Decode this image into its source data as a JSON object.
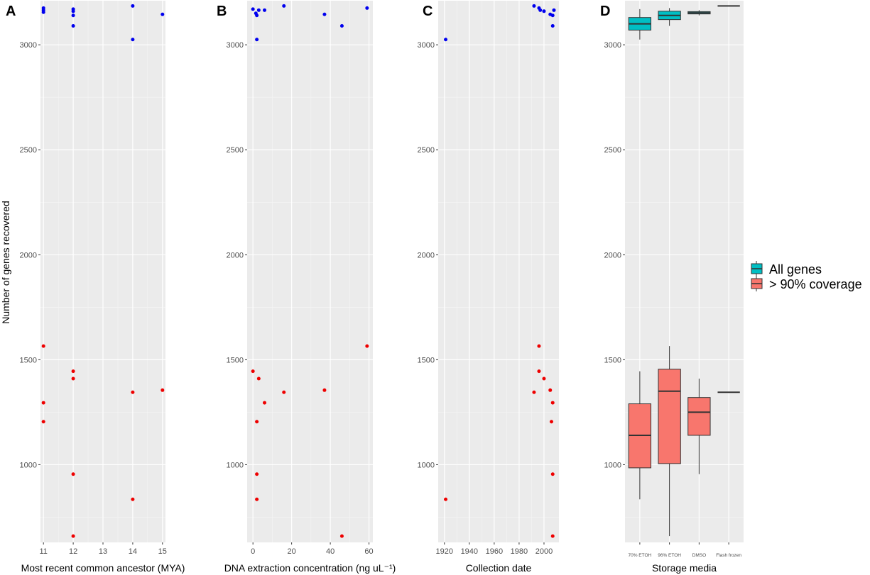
{
  "figure": {
    "y_axis_title": "Number of genes recovered",
    "colors": {
      "panel_bg": "#ebebeb",
      "grid_major": "#ffffff",
      "all_genes_point": "#0000ee",
      "coverage_point": "#ee0000",
      "all_genes_fill": "#00bfc4",
      "coverage_fill": "#f8766d",
      "box_stroke": "#333333",
      "tick_text": "#4d4d4d"
    }
  },
  "legend": {
    "position": "right",
    "items": [
      {
        "label": "All genes",
        "color": "#00bfc4"
      },
      {
        "label": "> 90% coverage",
        "color": "#f8766d"
      }
    ]
  },
  "chart_data": [
    {
      "panel": "A",
      "type": "scatter",
      "xlabel": "Most recent common ancestor (MYA)",
      "ylabel": "Number of genes recovered",
      "xlim": [
        10.9,
        15.1
      ],
      "ylim": [
        630,
        3210
      ],
      "x_ticks": [
        11,
        12,
        13,
        14,
        15
      ],
      "y_ticks": [
        1000,
        1500,
        2000,
        2500,
        3000
      ],
      "grid": true,
      "series": [
        {
          "name": "All genes",
          "color": "#0000ee",
          "points": [
            [
              11,
              3165
            ],
            [
              11,
              3155
            ],
            [
              11,
              3175
            ],
            [
              12,
              3170
            ],
            [
              12,
              3160
            ],
            [
              12,
              3140
            ],
            [
              12,
              3090
            ],
            [
              14,
              3185
            ],
            [
              14,
              3025
            ],
            [
              15,
              3145
            ]
          ]
        },
        {
          "name": "> 90% coverage",
          "color": "#ee0000",
          "points": [
            [
              11,
              1565
            ],
            [
              11,
              1295
            ],
            [
              11,
              1205
            ],
            [
              12,
              1445
            ],
            [
              12,
              1410
            ],
            [
              12,
              955
            ],
            [
              12,
              660
            ],
            [
              14,
              1345
            ],
            [
              14,
              835
            ],
            [
              15,
              1355
            ]
          ]
        }
      ]
    },
    {
      "panel": "B",
      "type": "scatter",
      "xlabel": "DNA extraction concentration (ng uL⁻¹)",
      "ylabel": "",
      "xlim": [
        -3,
        62
      ],
      "ylim": [
        630,
        3210
      ],
      "x_ticks": [
        0,
        20,
        40,
        60
      ],
      "y_ticks": [
        1000,
        1500,
        2000,
        2500,
        3000
      ],
      "grid": true,
      "series": [
        {
          "name": "All genes",
          "color": "#0000ee",
          "points": [
            [
              0,
              3170
            ],
            [
              1.5,
              3150
            ],
            [
              2,
              3140
            ],
            [
              3,
              3165
            ],
            [
              6,
              3165
            ],
            [
              2,
              3025
            ],
            [
              16,
              3185
            ],
            [
              37,
              3145
            ],
            [
              46,
              3090
            ],
            [
              59,
              3175
            ]
          ]
        },
        {
          "name": "> 90% coverage",
          "color": "#ee0000",
          "points": [
            [
              0,
              1445
            ],
            [
              3,
              1410
            ],
            [
              6,
              1295
            ],
            [
              2,
              1205
            ],
            [
              16,
              1345
            ],
            [
              37,
              1355
            ],
            [
              59,
              1565
            ],
            [
              2,
              955
            ],
            [
              2,
              835
            ],
            [
              46,
              660
            ]
          ]
        }
      ]
    },
    {
      "panel": "C",
      "type": "scatter",
      "xlabel": "Collection date",
      "ylabel": "",
      "xlim": [
        1915,
        2012
      ],
      "ylim": [
        630,
        3210
      ],
      "x_ticks": [
        1920,
        1940,
        1960,
        1980,
        2000
      ],
      "y_ticks": [
        1000,
        1500,
        2000,
        2500,
        3000
      ],
      "grid": true,
      "series": [
        {
          "name": "All genes",
          "color": "#0000ee",
          "points": [
            [
              1921,
              3025
            ],
            [
              1992,
              3185
            ],
            [
              1996,
              3175
            ],
            [
              1997,
              3165
            ],
            [
              2000,
              3160
            ],
            [
              2005,
              3145
            ],
            [
              2007,
              3140
            ],
            [
              2008,
              3165
            ],
            [
              2007,
              3090
            ]
          ]
        },
        {
          "name": "> 90% coverage",
          "color": "#ee0000",
          "points": [
            [
              1921,
              835
            ],
            [
              1992,
              1345
            ],
            [
              1996,
              1565
            ],
            [
              1996,
              1445
            ],
            [
              2000,
              1410
            ],
            [
              2005,
              1355
            ],
            [
              2007,
              1295
            ],
            [
              2006,
              1205
            ],
            [
              2007,
              955
            ],
            [
              2007,
              660
            ]
          ]
        }
      ]
    },
    {
      "panel": "D",
      "type": "box",
      "xlabel": "Storage media",
      "ylabel": "",
      "categories": [
        "70% ETOH",
        "96% ETOH",
        "DMSO",
        "Flash frozen"
      ],
      "ylim": [
        630,
        3210
      ],
      "y_ticks": [
        1000,
        1500,
        2000,
        2500,
        3000
      ],
      "grid": true,
      "series": [
        {
          "name": "All genes",
          "color": "#00bfc4",
          "boxes": [
            {
              "min": 3025,
              "q1": 3070,
              "median": 3100,
              "q3": 3130,
              "max": 3170
            },
            {
              "min": 3090,
              "q1": 3120,
              "median": 3140,
              "q3": 3160,
              "max": 3175
            },
            {
              "min": 3140,
              "q1": 3147,
              "median": 3152,
              "q3": 3158,
              "max": 3165
            },
            {
              "min": 3185,
              "q1": 3185,
              "median": 3185,
              "q3": 3185,
              "max": 3185
            }
          ]
        },
        {
          "name": "> 90% coverage",
          "color": "#f8766d",
          "boxes": [
            {
              "min": 835,
              "q1": 985,
              "median": 1140,
              "q3": 1290,
              "max": 1445
            },
            {
              "min": 660,
              "q1": 1005,
              "median": 1350,
              "q3": 1455,
              "max": 1565
            },
            {
              "min": 955,
              "q1": 1140,
              "median": 1250,
              "q3": 1320,
              "max": 1410
            },
            {
              "min": 1345,
              "q1": 1345,
              "median": 1345,
              "q3": 1345,
              "max": 1345
            }
          ]
        }
      ]
    }
  ]
}
